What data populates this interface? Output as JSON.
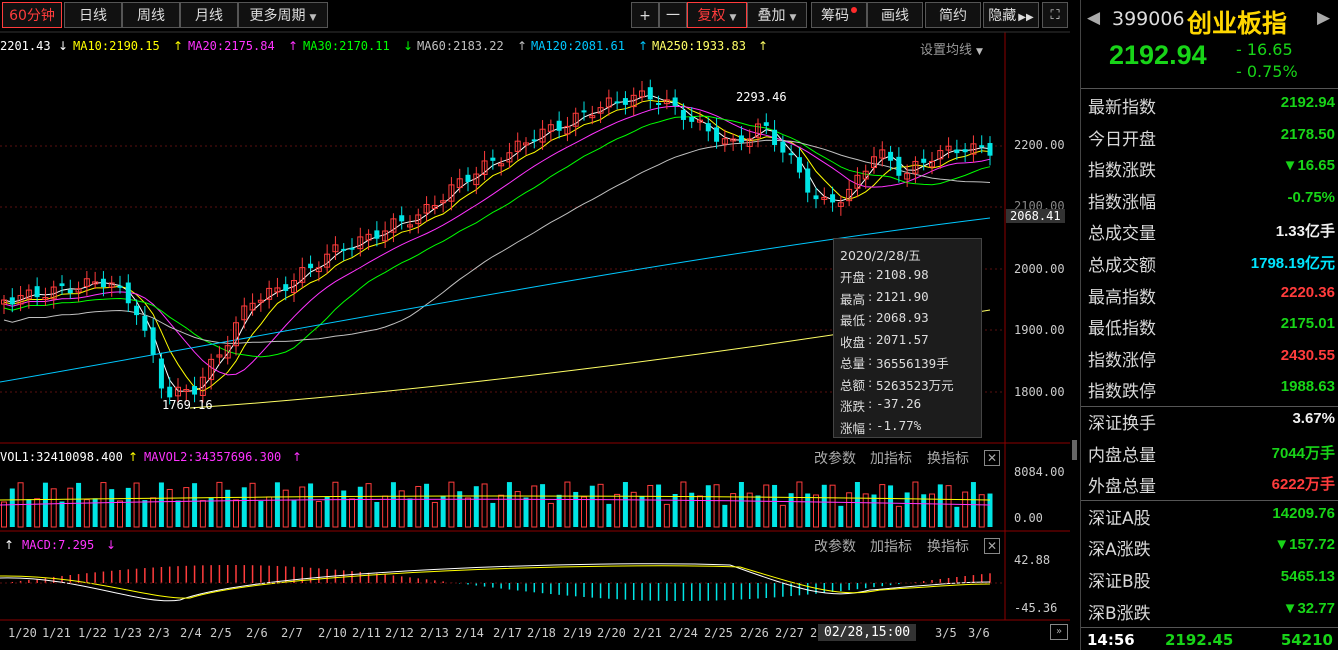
{
  "toolbar": {
    "periods": [
      "60分钟",
      "日线",
      "周线",
      "月线",
      "更多周期"
    ],
    "active_period": "60分钟",
    "tools": [
      "+",
      "一",
      "复权",
      "叠加",
      "筹码",
      "画线",
      "简约",
      "隐藏"
    ]
  },
  "ma_legend": {
    "first": "2201.43",
    "ma10": "MA10:2190.15",
    "ma20": "MA20:2175.84",
    "ma30": "MA30:2170.11",
    "ma60": "MA60:2183.22",
    "ma120": "MA120:2081.61",
    "ma250": "MA250:1933.83",
    "settings": "设置均线"
  },
  "colors": {
    "up": "#ff3c3c",
    "down": "#18d418",
    "cyan": "#00e5e5",
    "ma5": "#ffffff",
    "ma10": "#ffff00",
    "ma20": "#ff33ff",
    "ma30": "#00ff00",
    "ma60": "#c0c0c0",
    "ma120": "#00c8ff",
    "ma250": "#ffff66"
  },
  "price_axis": [
    "2200.00",
    "2100.00",
    "2068.41",
    "2000.00",
    "1900.00",
    "1800.00"
  ],
  "annotations": {
    "high": "2293.46",
    "low": "1769.16"
  },
  "volume_panel": {
    "vol1": "VOL1:32410098.400",
    "mavol2": "MAVOL2:34357696.300",
    "axis": [
      "8084.00",
      "0.00"
    ],
    "buttons": [
      "改参数",
      "加指标",
      "换指标"
    ]
  },
  "macd_panel": {
    "label": "MACD:7.295",
    "axis": [
      "42.88",
      "-45.36"
    ],
    "buttons": [
      "改参数",
      "加指标",
      "换指标"
    ]
  },
  "dates": [
    "1/20",
    "1/21",
    "1/22",
    "1/23",
    "2/3",
    "2/4",
    "2/5",
    "2/6",
    "2/7",
    "2/10",
    "2/11",
    "2/12",
    "2/13",
    "2/14",
    "2/17",
    "2/18",
    "2/19",
    "2/20",
    "2/21",
    "2/24",
    "2/25",
    "2/26",
    "2/27",
    "2/2",
    "3/5",
    "3/6"
  ],
  "cursor_time": "02/28,15:00",
  "tooltip": {
    "date": "2020/2/28/五",
    "rows": [
      {
        "label": "开盘",
        "value": "2108.98"
      },
      {
        "label": "最高",
        "value": "2121.90"
      },
      {
        "label": "最低",
        "value": "2068.93"
      },
      {
        "label": "收盘",
        "value": "2071.57"
      },
      {
        "label": "总量",
        "value": "36556139手"
      },
      {
        "label": "总额",
        "value": "5263523万元"
      },
      {
        "label": "涨跌",
        "value": "-37.26"
      },
      {
        "label": "涨幅",
        "value": "-1.77%"
      }
    ]
  },
  "index": {
    "code": "399006",
    "name": "创业板指",
    "price": "2192.94",
    "change": "- 16.65",
    "pct": "- 0.75%"
  },
  "stats": [
    {
      "label": "最新指数",
      "value": "2192.94",
      "color": "dn"
    },
    {
      "label": "今日开盘",
      "value": "2178.50",
      "color": "dn"
    },
    {
      "label": "指数涨跌",
      "value": "▼16.65",
      "color": "dn"
    },
    {
      "label": "指数涨幅",
      "value": "-0.75%",
      "color": "dn"
    },
    {
      "label": "总成交量",
      "value": "1.33亿手",
      "color": "wh"
    },
    {
      "label": "总成交额",
      "value": "1798.19亿元",
      "color": "cy"
    },
    {
      "label": "最高指数",
      "value": "2220.36",
      "color": "up"
    },
    {
      "label": "最低指数",
      "value": "2175.01",
      "color": "dn"
    },
    {
      "label": "指数涨停",
      "value": "2430.55",
      "color": "up"
    },
    {
      "label": "指数跌停",
      "value": "1988.63",
      "color": "dn"
    },
    {
      "label": "深证换手",
      "value": "3.67%",
      "color": "wh"
    },
    {
      "label": "内盘总量",
      "value": "7044万手",
      "color": "dn"
    },
    {
      "label": "外盘总量",
      "value": "6222万手",
      "color": "up"
    },
    {
      "label": "深证A股",
      "value": "14209.76",
      "color": "dn"
    },
    {
      "label": "深A涨跌",
      "value": "▼157.72",
      "color": "dn"
    },
    {
      "label": "深证B股",
      "value": "5465.13",
      "color": "dn"
    },
    {
      "label": "深B涨跌",
      "value": "▼32.77",
      "color": "dn"
    }
  ],
  "tick": {
    "time": "14:56",
    "price": "2192.45",
    "volume": "54210"
  }
}
